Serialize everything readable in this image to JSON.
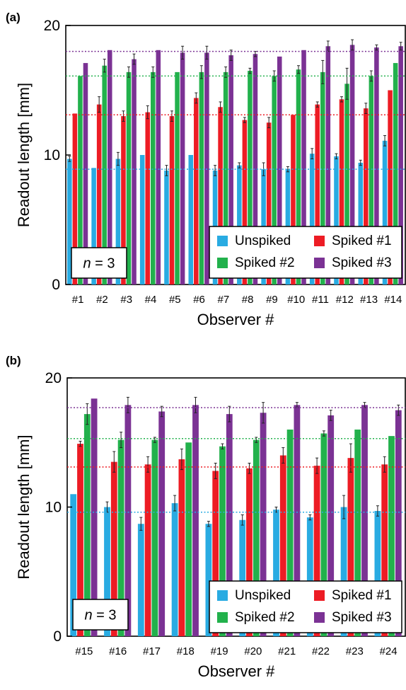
{
  "chart_data": [
    {
      "panel_label": "(a)",
      "type": "bar",
      "ylabel": "Readout length [mm]",
      "xlabel": "Observer #",
      "ylim": [
        0,
        20
      ],
      "yticks": [
        0,
        10,
        20
      ],
      "categories": [
        "#1",
        "#2",
        "#3",
        "#4",
        "#5",
        "#6",
        "#7",
        "#8",
        "#9",
        "#10",
        "#11",
        "#12",
        "#13",
        "#14"
      ],
      "series": [
        {
          "name": "Unspiked",
          "color": "#29abe2",
          "values": [
            9.7,
            9.0,
            9.7,
            10.0,
            8.8,
            10.0,
            8.8,
            9.2,
            8.9,
            8.9,
            10.1,
            9.9,
            9.4,
            11.1
          ],
          "errors": [
            0.2,
            0.0,
            0.5,
            0.0,
            0.4,
            0.0,
            0.4,
            0.2,
            0.5,
            0.2,
            0.4,
            0.2,
            0.2,
            0.4
          ]
        },
        {
          "name": "Spiked #1",
          "color": "#ed1c24",
          "values": [
            13.2,
            13.9,
            13.0,
            13.3,
            13.0,
            14.4,
            13.7,
            12.7,
            12.5,
            13.1,
            13.9,
            14.3,
            13.6,
            15.0
          ],
          "errors": [
            0.0,
            0.6,
            0.4,
            0.5,
            0.4,
            0.4,
            0.4,
            0.2,
            0.4,
            0.0,
            0.2,
            0.2,
            0.4,
            0.0
          ]
        },
        {
          "name": "Spiked #2",
          "color": "#22b14c",
          "values": [
            16.1,
            16.9,
            16.4,
            16.4,
            16.4,
            16.4,
            16.4,
            16.5,
            16.1,
            16.6,
            16.4,
            15.5,
            16.1,
            17.1
          ],
          "errors": [
            0.0,
            0.5,
            0.4,
            0.4,
            0.0,
            0.5,
            0.4,
            0.2,
            0.4,
            0.3,
            0.9,
            1.2,
            0.4,
            0.0
          ]
        },
        {
          "name": "Spiked #3",
          "color": "#7b3294",
          "values": [
            17.1,
            18.1,
            17.4,
            18.1,
            17.9,
            17.9,
            17.7,
            17.8,
            17.6,
            18.1,
            18.4,
            18.5,
            18.3,
            18.4
          ],
          "errors": [
            0.0,
            0.0,
            0.4,
            0.0,
            0.5,
            0.5,
            0.4,
            0.2,
            0.0,
            0.0,
            0.4,
            0.4,
            0.2,
            0.3
          ]
        }
      ],
      "reference_lines": [
        {
          "series": "Unspiked",
          "value": 8.9
        },
        {
          "series": "Spiked #1",
          "value": 13.1
        },
        {
          "series": "Spiked #2",
          "value": 16.1
        },
        {
          "series": "Spiked #3",
          "value": 18.0
        }
      ],
      "annotation_n_italic": "n",
      "annotation_n_rest": " = 3",
      "legend_position": "bottom-right"
    },
    {
      "panel_label": "(b)",
      "type": "bar",
      "ylabel": "Readout length [mm]",
      "xlabel": "Observer #",
      "ylim": [
        0,
        20
      ],
      "yticks": [
        0,
        10,
        20
      ],
      "categories": [
        "#15",
        "#16",
        "#17",
        "#18",
        "#19",
        "#20",
        "#21",
        "#22",
        "#23",
        "#24"
      ],
      "series": [
        {
          "name": "Unspiked",
          "color": "#29abe2",
          "values": [
            11.0,
            10.0,
            8.7,
            10.3,
            8.7,
            9.0,
            9.8,
            9.2,
            10.0,
            9.7
          ],
          "errors": [
            0.0,
            0.4,
            0.5,
            0.6,
            0.2,
            0.4,
            0.2,
            0.2,
            0.9,
            0.4
          ]
        },
        {
          "name": "Spiked #1",
          "color": "#ed1c24",
          "values": [
            14.9,
            13.5,
            13.3,
            13.7,
            12.8,
            13.0,
            14.0,
            13.2,
            13.8,
            13.3
          ],
          "errors": [
            0.2,
            0.8,
            0.6,
            0.8,
            0.6,
            0.4,
            0.6,
            0.6,
            1.1,
            0.6
          ]
        },
        {
          "name": "Spiked #2",
          "color": "#22b14c",
          "values": [
            17.2,
            15.2,
            15.2,
            15.0,
            14.7,
            15.2,
            16.0,
            15.7,
            16.0,
            15.5
          ],
          "errors": [
            0.8,
            0.6,
            0.2,
            0.0,
            0.2,
            0.2,
            0.0,
            0.2,
            0.0,
            0.0
          ]
        },
        {
          "name": "Spiked #3",
          "color": "#7b3294",
          "values": [
            18.4,
            17.9,
            17.4,
            17.9,
            17.2,
            17.3,
            17.9,
            17.1,
            17.9,
            17.5
          ],
          "errors": [
            0.0,
            0.6,
            0.4,
            0.6,
            0.6,
            0.8,
            0.2,
            0.4,
            0.2,
            0.4
          ]
        }
      ],
      "reference_lines": [
        {
          "series": "Unspiked",
          "value": 9.6
        },
        {
          "series": "Spiked #1",
          "value": 13.1
        },
        {
          "series": "Spiked #2",
          "value": 15.3
        },
        {
          "series": "Spiked #3",
          "value": 17.7
        }
      ],
      "annotation_n_italic": "n",
      "annotation_n_rest": " = 3",
      "legend_position": "bottom-right"
    }
  ]
}
